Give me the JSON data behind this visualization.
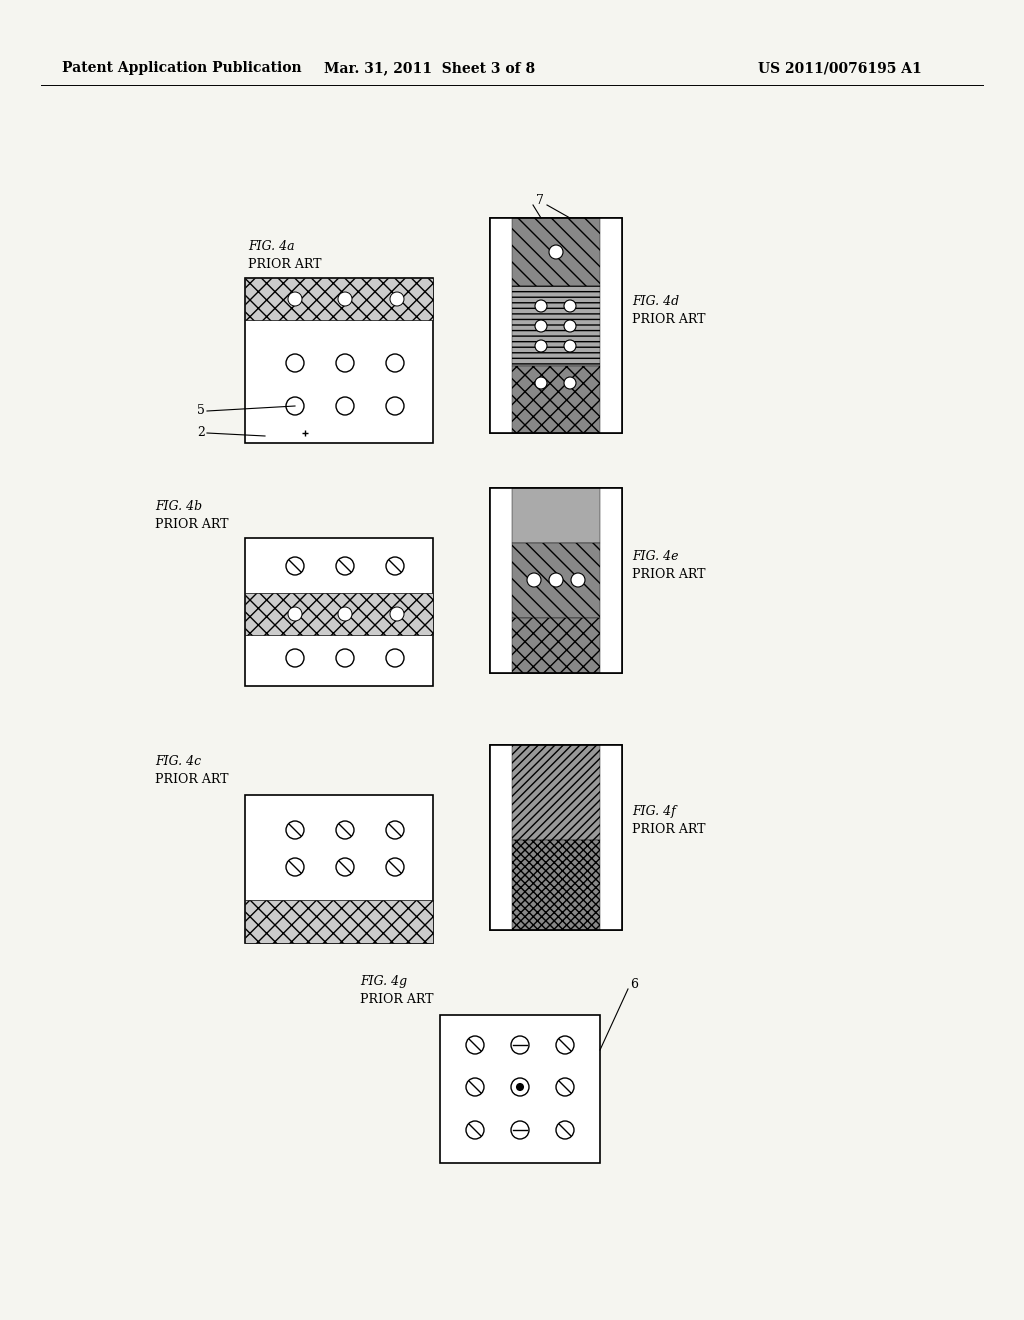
{
  "header_left": "Patent Application Publication",
  "header_mid": "Mar. 31, 2011  Sheet 3 of 8",
  "header_right": "US 2011/0076195 A1",
  "background_color": "#f5f5f0",
  "fig_4a_label": "FIG. 4a\nPRIOR ART",
  "fig_4b_label": "FIG. 4b\nPRIOR ART",
  "fig_4c_label": "FIG. 4c\nPRIOR ART",
  "fig_4d_label": "FIG. 4d\nPRIOR ART",
  "fig_4e_label": "FIG. 4e\nPRIOR ART",
  "fig_4f_label": "FIG. 4f\nPRIOR ART",
  "fig_4g_label": "FIG. 4g\nPRIOR ART",
  "label_5": "5",
  "label_2": "2",
  "label_6": "6",
  "label_7": "7"
}
